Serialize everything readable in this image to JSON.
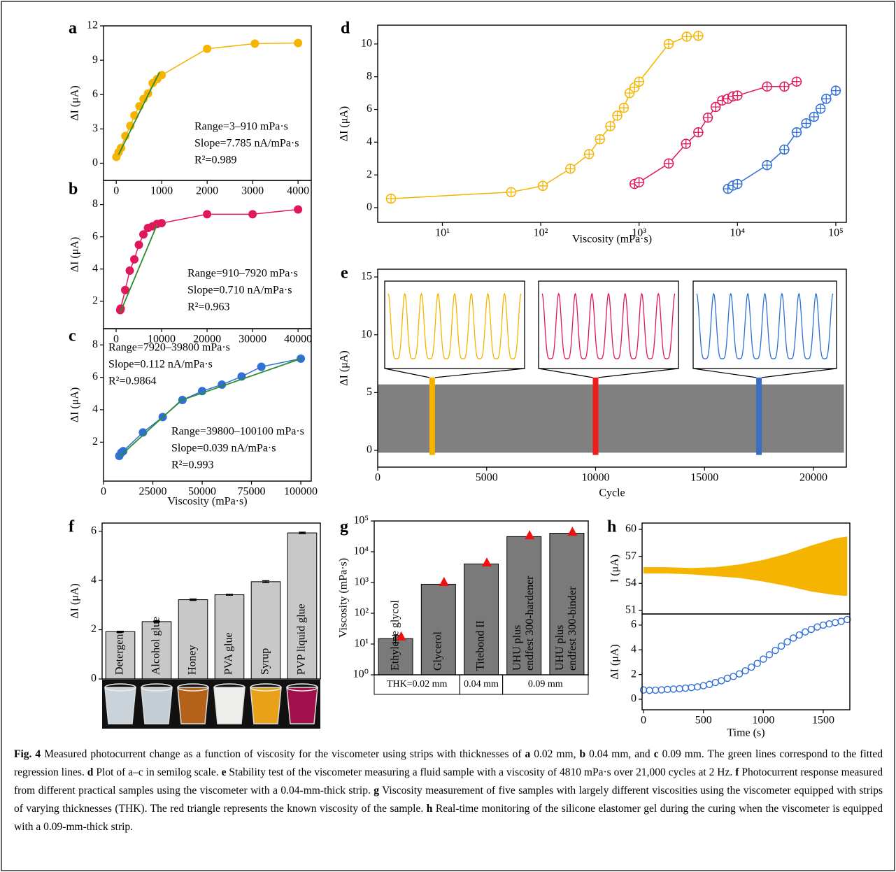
{
  "chart_data": [
    {
      "type": "line",
      "panel": "a",
      "ylabel": "ΔI (μA)",
      "marker": "circle",
      "xlim": [
        -280,
        4290
      ],
      "xticks": [
        0,
        1000,
        2000,
        3000,
        4000
      ],
      "ylim": [
        -1.5,
        12
      ],
      "yticks": [
        0,
        3,
        6,
        9,
        12
      ],
      "series": [
        {
          "color": "#f5b400",
          "x": [
            3,
            50,
            105,
            200,
            310,
            400,
            510,
            600,
            700,
            800,
            900,
            1000,
            2000,
            3050,
            4000
          ],
          "values": [
            0.55,
            0.95,
            1.33,
            2.38,
            3.27,
            4.18,
            4.98,
            5.62,
            6.1,
            7.0,
            7.35,
            7.7,
            10.0,
            10.45,
            10.5
          ]
        }
      ],
      "fit_lines": [
        {
          "color": "#2e8b2e",
          "x": [
            50,
            950
          ],
          "values": [
            0.75,
            7.95
          ]
        }
      ],
      "annotations": [
        [
          "Range=3–910 mPa·s",
          "Slope=7.785 nA/mPa·s",
          "R²=0.989"
        ]
      ]
    },
    {
      "type": "line",
      "panel": "b",
      "ylabel": "ΔI (μA)",
      "marker": "circle",
      "xlim": [
        -2770,
        42900
      ],
      "xticks": [
        0,
        10000,
        20000,
        30000,
        40000
      ],
      "ylim": [
        0.3,
        9.5
      ],
      "yticks": [
        2,
        4,
        6,
        8
      ],
      "series": [
        {
          "color": "#e0185a",
          "x": [
            900,
            1000,
            2000,
            3000,
            4000,
            5000,
            6000,
            7000,
            8000,
            9000,
            10000,
            20000,
            30000,
            40000
          ],
          "values": [
            1.45,
            1.55,
            2.7,
            3.9,
            4.6,
            5.5,
            6.15,
            6.55,
            6.65,
            6.8,
            6.85,
            7.4,
            7.4,
            7.7
          ]
        }
      ],
      "fit_lines": [
        {
          "color": "#2e8b2e",
          "x": [
            900,
            9000
          ],
          "values": [
            1.3,
            6.75
          ]
        }
      ],
      "annotations": [
        [
          "Range=910–7920 mPa·s",
          "Slope=0.710 nA/mPa·s",
          "R²=0.963"
        ]
      ]
    },
    {
      "type": "line",
      "panel": "c",
      "ylabel": "ΔI (μA)",
      "xlabel": "Viscosity (mPa·s)",
      "marker": "circle",
      "xlim": [
        0,
        105300
      ],
      "xticks": [
        0,
        25000,
        50000,
        75000,
        100000
      ],
      "ylim": [
        -0.4,
        9
      ],
      "yticks": [
        2,
        4,
        6,
        8
      ],
      "series": [
        {
          "color": "#2f6fd6",
          "x": [
            8000,
            9000,
            10000,
            20000,
            30000,
            40000,
            50000,
            60000,
            70000,
            80000,
            100000
          ],
          "values": [
            1.15,
            1.35,
            1.45,
            2.6,
            3.55,
            4.6,
            5.15,
            5.55,
            6.05,
            6.65,
            7.15
          ]
        }
      ],
      "fit_lines": [
        {
          "color": "#2e8b2e",
          "x": [
            8000,
            40000
          ],
          "values": [
            1.1,
            4.65
          ]
        },
        {
          "color": "#2e8b2e",
          "x": [
            39800,
            100100
          ],
          "values": [
            4.6,
            7.15
          ]
        }
      ],
      "annotations": [
        [
          "Range=7920–39800 mPa·s",
          "Slope=0.112 nA/mPa·s",
          "R²=0.9864"
        ],
        [
          "Range=39800–100100 mPa·s",
          "Slope=0.039 nA/mPa·s",
          "R²=0.993"
        ]
      ]
    },
    {
      "type": "line",
      "panel": "d",
      "ylabel": "ΔI (μA)",
      "xlabel": "Viscosity (mPa·s)",
      "marker": "circle-cross",
      "log_x": true,
      "xlim": [
        2.2,
        128000
      ],
      "xticks": [
        {
          "value": 10,
          "label": "10¹"
        },
        {
          "value": 100,
          "label": "10²"
        },
        {
          "value": 1000,
          "label": "10³"
        },
        {
          "value": 10000,
          "label": "10⁴"
        },
        {
          "value": 100000,
          "label": "10⁵"
        }
      ],
      "ylim": [
        -0.9,
        11.15
      ],
      "yticks": [
        0,
        2,
        4,
        6,
        8,
        10
      ],
      "series": [
        {
          "color": "#f5b400",
          "x": [
            3,
            50,
            105,
            200,
            310,
            400,
            510,
            600,
            700,
            800,
            900,
            1000,
            2000,
            3050,
            4000
          ],
          "values": [
            0.55,
            0.95,
            1.33,
            2.38,
            3.27,
            4.18,
            4.98,
            5.62,
            6.1,
            7.0,
            7.35,
            7.7,
            10.0,
            10.45,
            10.5
          ]
        },
        {
          "color": "#e0185a",
          "x": [
            900,
            1000,
            2000,
            3000,
            4000,
            5000,
            6000,
            7000,
            8000,
            9000,
            10000,
            20000,
            30000,
            40000
          ],
          "values": [
            1.45,
            1.55,
            2.7,
            3.9,
            4.6,
            5.5,
            6.15,
            6.55,
            6.65,
            6.8,
            6.85,
            7.4,
            7.4,
            7.7
          ]
        },
        {
          "color": "#2f6fd6",
          "x": [
            8000,
            9000,
            10000,
            20000,
            30000,
            40000,
            50000,
            60000,
            70000,
            80000,
            100000
          ],
          "values": [
            1.15,
            1.35,
            1.45,
            2.6,
            3.55,
            4.6,
            5.15,
            5.55,
            6.05,
            6.65,
            7.15
          ]
        }
      ]
    },
    {
      "type": "area",
      "panel": "e",
      "ylabel": "ΔI (μA)",
      "xlabel": "Cycle",
      "xlim": [
        0,
        21510
      ],
      "xticks": [
        0,
        5000,
        10000,
        15000,
        20000
      ],
      "ylim": [
        -1.45,
        15.67
      ],
      "yticks": [
        0,
        5,
        10,
        15
      ],
      "series": [
        {
          "color": "#808080",
          "x": [
            0,
            21400
          ],
          "low": [
            -0.2,
            -0.2
          ],
          "values": [
            5.7,
            5.7
          ]
        }
      ],
      "markers": [
        {
          "color": "#f5b400",
          "x": 2500,
          "range": [
            -0.4,
            6.3
          ]
        },
        {
          "color": "#ee1c1c",
          "x": 10000,
          "range": [
            -0.4,
            6.3
          ]
        },
        {
          "color": "#3b6fc4",
          "x": 17500,
          "range": [
            -0.4,
            6.3
          ]
        }
      ],
      "insets": [
        {
          "color": "#f5b400",
          "peaks": 8
        },
        {
          "color": "#e0185a",
          "peaks": 8
        },
        {
          "color": "#2f6fd6",
          "peaks": 8
        }
      ]
    },
    {
      "type": "bar",
      "panel": "f",
      "ylabel": "ΔI (μA)",
      "color": "#c8c8c8",
      "categories": [
        "Detergent",
        "Alcohol glue",
        "Honey",
        "PVA glue",
        "Syrup",
        "PVP liquid glue"
      ],
      "values": [
        1.92,
        2.33,
        3.22,
        3.42,
        3.95,
        5.93
      ],
      "errors": [
        0.02,
        0.02,
        0.03,
        0.02,
        0.04,
        0.03
      ],
      "ylim": [
        0,
        6.33
      ],
      "yticks": [
        0,
        2,
        4,
        6
      ],
      "photo_colors": [
        "#c9d3d9",
        "#c4ced6",
        "#b4621a",
        "#eeeeea",
        "#e8a21a",
        "#a0104a"
      ]
    },
    {
      "type": "bar",
      "panel": "g",
      "ylabel": "Viscosity (mPa·s)",
      "color": "#7a7a7a",
      "log_y": true,
      "categories": [
        [
          "Ethylene glycol"
        ],
        [
          "Glycerol"
        ],
        [
          "Titebond II"
        ],
        [
          "UHU plus",
          "endfest 300-hardener"
        ],
        [
          "UHU plus",
          "endfest 300-binder"
        ]
      ],
      "values": [
        15,
        880,
        4000,
        31000,
        40000
      ],
      "errors": [
        4,
        0,
        0,
        0,
        0
      ],
      "known": {
        "color": "#ee1111",
        "values": [
          17,
          1000,
          4300,
          33000,
          43000
        ]
      },
      "ylim": [
        1,
        100000
      ],
      "yticks": [
        {
          "value": 1,
          "label": "10⁰"
        },
        {
          "value": 10,
          "label": "10¹"
        },
        {
          "value": 100,
          "label": "10²"
        },
        {
          "value": 1000,
          "label": "10³"
        },
        {
          "value": 10000,
          "label": "10⁴"
        },
        {
          "value": 100000,
          "label": "10⁵"
        }
      ],
      "groups": [
        {
          "label": "THK=0.02 mm",
          "count": 2
        },
        {
          "label": "0.04 mm",
          "count": 1
        },
        {
          "label": "0.09 mm",
          "count": 2
        }
      ]
    },
    {
      "type": "area",
      "panel": "h",
      "ylabel": "I (μA)",
      "xlim": [
        -12,
        1722
      ],
      "ylim": [
        50.6,
        60.7
      ],
      "yticks": [
        51,
        54,
        57,
        60
      ],
      "series": [
        {
          "color": "#f5b400",
          "x": [
            0,
            200,
            400,
            600,
            800,
            1000,
            1200,
            1400,
            1600,
            1700
          ],
          "low": [
            55.1,
            55.1,
            55.0,
            54.8,
            54.6,
            54.2,
            53.7,
            53.1,
            52.7,
            52.6
          ],
          "values": [
            55.8,
            55.8,
            55.7,
            55.8,
            56.1,
            56.6,
            57.3,
            58.2,
            59.0,
            59.2
          ]
        }
      ]
    },
    {
      "type": "scatter",
      "ylabel": "ΔI (μA)",
      "xlabel": "Time (s)",
      "xlim": [
        -12,
        1722
      ],
      "xticks": [
        0,
        500,
        1000,
        1500
      ],
      "ylim": [
        -0.85,
        6.9
      ],
      "yticks": [
        0,
        2,
        4,
        6
      ],
      "series": [
        {
          "color": "#2f6fd6",
          "x": [
            0,
            50,
            100,
            150,
            200,
            250,
            300,
            350,
            400,
            450,
            500,
            550,
            600,
            650,
            700,
            750,
            800,
            850,
            900,
            950,
            1000,
            1050,
            1100,
            1150,
            1200,
            1250,
            1300,
            1350,
            1400,
            1450,
            1500,
            1550,
            1600,
            1650,
            1700
          ],
          "values": [
            0.75,
            0.72,
            0.74,
            0.76,
            0.8,
            0.82,
            0.85,
            0.9,
            0.95,
            1.0,
            1.1,
            1.2,
            1.35,
            1.5,
            1.7,
            1.85,
            2.05,
            2.3,
            2.6,
            2.9,
            3.25,
            3.6,
            3.95,
            4.3,
            4.65,
            4.95,
            5.2,
            5.45,
            5.65,
            5.85,
            6.0,
            6.1,
            6.2,
            6.3,
            6.45
          ]
        }
      ]
    }
  ],
  "caption": [
    {
      "text": "Fig. 4",
      "bold": true
    },
    {
      "text": " Measured photocurrent change as a function of viscosity for the viscometer using strips with thicknesses of "
    },
    {
      "text": "a",
      "bold": true
    },
    {
      "text": " 0.02 mm, "
    },
    {
      "text": "b",
      "bold": true
    },
    {
      "text": " 0.04 mm, and "
    },
    {
      "text": "c",
      "bold": true
    },
    {
      "text": " 0.09 mm. The green lines correspond to the fitted regression lines. "
    },
    {
      "text": "d",
      "bold": true
    },
    {
      "text": " Plot of a–c in semilog scale. "
    },
    {
      "text": "e",
      "bold": true
    },
    {
      "text": " Stability test of the viscometer measuring a fluid sample with a viscosity of 4810 mPa·s over 21,000 cycles at 2 Hz. "
    },
    {
      "text": "f",
      "bold": true
    },
    {
      "text": " Photocurrent response measured from different practical samples using the viscometer with a 0.04-mm-thick strip. "
    },
    {
      "text": "g",
      "bold": true
    },
    {
      "text": " Viscosity measurement of five samples with largely different viscosities using the viscometer equipped with strips of varying thicknesses (THK). The red triangle represents the known viscosity of the sample. "
    },
    {
      "text": "h",
      "bold": true
    },
    {
      "text": " Real-time monitoring of the silicone elastomer gel during the curing when the viscometer is equipped with a 0.09-mm-thick strip."
    }
  ]
}
